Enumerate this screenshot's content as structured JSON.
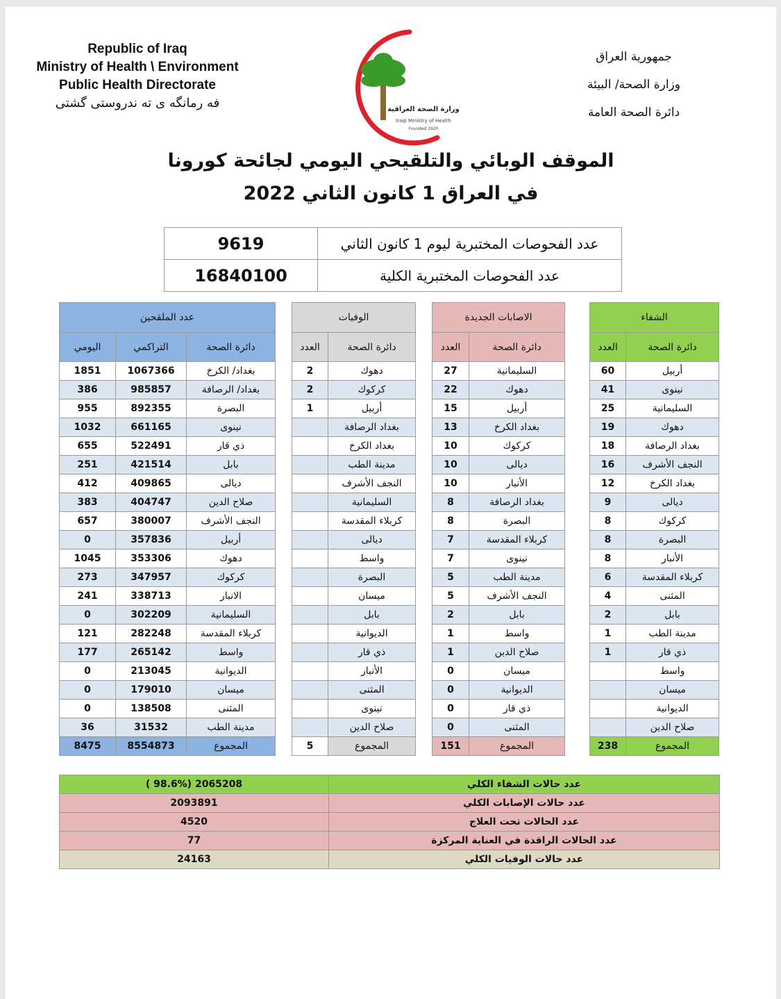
{
  "header": {
    "english_lines": [
      "Republic of Iraq",
      "Ministry of Health \\ Environment",
      "Public Health Directorate",
      "فه رمانگه ی ته ندروستی گشتی"
    ],
    "arabic_lines": [
      "جمهورية العراق",
      "وزارة الصحة/ البيئة",
      "دائرة الصحة العامة"
    ],
    "logo": {
      "lettering": [
        "وزارة الصحة العراقية",
        "Iraqi Ministry of Health",
        "Founded 1920"
      ],
      "colors": {
        "crescent": "#e0202a",
        "palm": "#3a9a2a"
      }
    }
  },
  "title": {
    "line1": "الموقف الوبائي والتلقيحي اليومي لجائحة كورونا",
    "line2": "في العراق  1  كانون الثاني 2022"
  },
  "tests": [
    {
      "label": "عدد الفحوصات المختبرية  ليوم 1 كانون الثاني",
      "value": "9619"
    },
    {
      "label": "عدد الفحوصات المختبرية الكلية",
      "value": "16840100"
    }
  ],
  "sections": {
    "vaccinated": {
      "title": "عدد الملقحين",
      "cols": [
        "دائرة الصحة",
        "التراكمي",
        "اليومي"
      ],
      "color": "#8db3e2"
    },
    "deaths": {
      "title": "الوفيات",
      "cols": [
        "دائرة الصحة",
        "العدد"
      ],
      "color": "#d9d9d9"
    },
    "new_cases": {
      "title": "الاصابات الجديدة",
      "cols": [
        "دائرة الصحة",
        "العدد"
      ],
      "color": "#e6b9b8"
    },
    "recovery": {
      "title": "الشفاء",
      "cols": [
        "دائرة الصحة",
        "العدد"
      ],
      "color": "#92d050"
    }
  },
  "rows": {
    "vaccinated": [
      [
        "بغداد/ الكرخ",
        "1067366",
        "1851"
      ],
      [
        "بغداد/ الرصافة",
        "985857",
        "386"
      ],
      [
        "البصرة",
        "892355",
        "955"
      ],
      [
        "نينوى",
        "661165",
        "1032"
      ],
      [
        "ذي قار",
        "522491",
        "655"
      ],
      [
        "بابل",
        "421514",
        "251"
      ],
      [
        "ديالى",
        "409865",
        "412"
      ],
      [
        "صلاح الدين",
        "404747",
        "383"
      ],
      [
        "النجف الأشرف",
        "380007",
        "657"
      ],
      [
        "أربيل",
        "357836",
        "0"
      ],
      [
        "دهوك",
        "353306",
        "1045"
      ],
      [
        "كركوك",
        "347957",
        "273"
      ],
      [
        "الانبار",
        "338713",
        "241"
      ],
      [
        "السليمانية",
        "302209",
        "0"
      ],
      [
        "كربلاء المقدسة",
        "282248",
        "121"
      ],
      [
        "واسط",
        "265142",
        "177"
      ],
      [
        "الديوانية",
        "213045",
        "0"
      ],
      [
        "ميسان",
        "179010",
        "0"
      ],
      [
        "المثنى",
        "138508",
        "0"
      ],
      [
        "مدينة الطب",
        "31532",
        "36"
      ]
    ],
    "deaths": [
      [
        "دهوك",
        "2"
      ],
      [
        "كركوك",
        "2"
      ],
      [
        "أربيل",
        "1"
      ],
      [
        "بغداد الرصافة",
        ""
      ],
      [
        "بغداد الكرخ",
        ""
      ],
      [
        "مدينة الطب",
        ""
      ],
      [
        "النجف الأشرف",
        ""
      ],
      [
        "السليمانية",
        ""
      ],
      [
        "كربلاء المقدسة",
        ""
      ],
      [
        "ديالى",
        ""
      ],
      [
        "واسط",
        ""
      ],
      [
        "البصرة",
        ""
      ],
      [
        "ميسان",
        ""
      ],
      [
        "بابل",
        ""
      ],
      [
        "الديوانية",
        ""
      ],
      [
        "ذي قار",
        ""
      ],
      [
        "الأنبار",
        ""
      ],
      [
        "المثنى",
        ""
      ],
      [
        "نينوى",
        ""
      ],
      [
        "صلاح الدين",
        ""
      ]
    ],
    "new_cases": [
      [
        "السليمانية",
        "27"
      ],
      [
        "دهوك",
        "22"
      ],
      [
        "أربيل",
        "15"
      ],
      [
        "بغداد الكرخ",
        "13"
      ],
      [
        "كركوك",
        "10"
      ],
      [
        "ديالى",
        "10"
      ],
      [
        "الأنبار",
        "10"
      ],
      [
        "بغداد الرصافة",
        "8"
      ],
      [
        "البصرة",
        "8"
      ],
      [
        "كربلاء المقدسة",
        "7"
      ],
      [
        "نينوى",
        "7"
      ],
      [
        "مدينة الطب",
        "5"
      ],
      [
        "النجف الأشرف",
        "5"
      ],
      [
        "بابل",
        "2"
      ],
      [
        "واسط",
        "1"
      ],
      [
        "صلاح الدين",
        "1"
      ],
      [
        "ميسان",
        "0"
      ],
      [
        "الديوانية",
        "0"
      ],
      [
        "ذي قار",
        "0"
      ],
      [
        "المثنى",
        "0"
      ]
    ],
    "recovery": [
      [
        "أربيل",
        "60"
      ],
      [
        "نينوى",
        "41"
      ],
      [
        "السليمانية",
        "25"
      ],
      [
        "دهوك",
        "19"
      ],
      [
        "بغداد الرصافة",
        "18"
      ],
      [
        "النجف الأشرف",
        "16"
      ],
      [
        "بغداد الكرخ",
        "12"
      ],
      [
        "ديالى",
        "9"
      ],
      [
        "كركوك",
        "8"
      ],
      [
        "البصرة",
        "8"
      ],
      [
        "الأنبار",
        "8"
      ],
      [
        "كربلاء المقدسة",
        "6"
      ],
      [
        "المثنى",
        "4"
      ],
      [
        "بابل",
        "2"
      ],
      [
        "مدينة الطب",
        "1"
      ],
      [
        "ذي قار",
        "1"
      ],
      [
        "واسط",
        ""
      ],
      [
        "ميسان",
        ""
      ],
      [
        "الديوانية",
        ""
      ],
      [
        "صلاح الدين",
        ""
      ]
    ]
  },
  "totals": {
    "label": "المجموع",
    "vaccinated_cumulative": "8554873",
    "vaccinated_daily": "8475",
    "deaths": "5",
    "new_cases": "151",
    "recovery": "238"
  },
  "summary": [
    {
      "label": "عدد حالات الشفاء الكلي",
      "value": "( 98.6%)  2065208",
      "color": "#92d050"
    },
    {
      "label": "عدد حالات الإصابات الكلي",
      "value": "2093891",
      "color": "#e6b9b8"
    },
    {
      "label": "عدد الحالات تحت العلاج",
      "value": "4520",
      "color": "#e6b9b8"
    },
    {
      "label": "عدد الحالات الراقدة في العناية المركزة",
      "value": "77",
      "color": "#e6b9b8"
    },
    {
      "label": "عدد حالات الوفيات الكلي",
      "value": "24163",
      "color": "#ddd9c3"
    }
  ]
}
